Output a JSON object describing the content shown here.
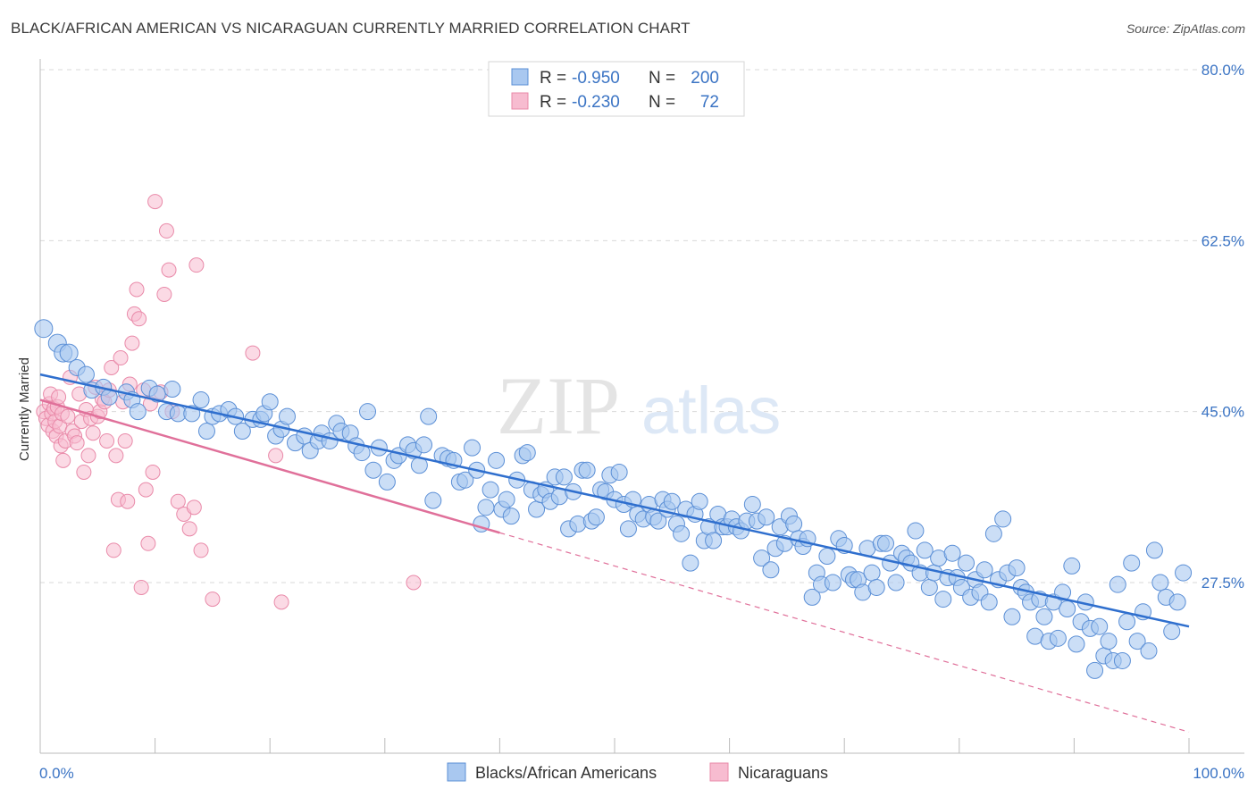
{
  "header": {
    "title": "BLACK/AFRICAN AMERICAN VS NICARAGUAN CURRENTLY MARRIED CORRELATION CHART",
    "source": "Source: ZipAtlas.com"
  },
  "watermark": {
    "zip": "ZIP",
    "atlas": "atlas"
  },
  "colors": {
    "blue_fill": "#a9c8f0",
    "blue_stroke": "#5b8fd6",
    "blue_line": "#2f6fce",
    "pink_fill": "#f7bcd0",
    "pink_stroke": "#e98aa9",
    "pink_line": "#e0709a",
    "tick_label": "#3b74c4",
    "grid": "#d9d9d9"
  },
  "legend": {
    "rows": [
      {
        "r_label": "R =",
        "r_value": "-0.950",
        "n_label": "N =",
        "n_value": "200",
        "series": "blue"
      },
      {
        "r_label": "R =",
        "r_value": "-0.230",
        "n_label": "N =",
        "n_value": "72",
        "series": "pink"
      }
    ]
  },
  "chart_data": {
    "type": "scatter",
    "title": "BLACK/AFRICAN AMERICAN VS NICARAGUAN CURRENTLY MARRIED CORRELATION CHART",
    "xlabel": "",
    "ylabel": "Currently Married",
    "xlim": [
      0,
      100
    ],
    "ylim": [
      10,
      85
    ],
    "x_tick_labels": [
      {
        "value": 0,
        "label": "0.0%"
      },
      {
        "value": 100,
        "label": "100.0%"
      }
    ],
    "y_tick_labels": [
      {
        "value": 27.5,
        "label": "27.5%"
      },
      {
        "value": 45.0,
        "label": "45.0%"
      },
      {
        "value": 62.5,
        "label": "62.5%"
      },
      {
        "value": 80.0,
        "label": "80.0%"
      }
    ],
    "grid": true,
    "legend_position": "top-center",
    "series": [
      {
        "name": "Blacks/African Americans",
        "color": "#a9c8f0",
        "r": -0.95,
        "n": 200,
        "trend": {
          "x": [
            0,
            100
          ],
          "y": [
            48.8,
            23.0
          ],
          "dashed_after_x": null
        },
        "points": [
          [
            0.3,
            53.5
          ],
          [
            1.5,
            52.0
          ],
          [
            2.0,
            51.0
          ],
          [
            2.5,
            51.0
          ],
          [
            3.2,
            49.5
          ],
          [
            4.0,
            48.8
          ],
          [
            4.5,
            47.2
          ],
          [
            5.5,
            47.5
          ],
          [
            6.0,
            46.5
          ],
          [
            7.5,
            47.0
          ],
          [
            8.0,
            46.2
          ],
          [
            8.5,
            45.0
          ],
          [
            9.5,
            47.4
          ],
          [
            10.2,
            46.8
          ],
          [
            11.0,
            45.0
          ],
          [
            11.5,
            47.3
          ],
          [
            12.0,
            44.8
          ],
          [
            13.2,
            44.8
          ],
          [
            14.0,
            46.2
          ],
          [
            14.5,
            43.0
          ],
          [
            15.0,
            44.5
          ],
          [
            15.6,
            44.8
          ],
          [
            16.4,
            45.2
          ],
          [
            17.0,
            44.5
          ],
          [
            17.6,
            43.0
          ],
          [
            18.5,
            44.2
          ],
          [
            19.2,
            44.2
          ],
          [
            19.5,
            44.8
          ],
          [
            20.0,
            46.0
          ],
          [
            20.5,
            42.5
          ],
          [
            21.0,
            43.2
          ],
          [
            21.5,
            44.5
          ],
          [
            22.2,
            41.8
          ],
          [
            23.0,
            42.5
          ],
          [
            23.5,
            41.0
          ],
          [
            24.2,
            42.0
          ],
          [
            24.5,
            42.8
          ],
          [
            25.2,
            42.0
          ],
          [
            25.8,
            43.8
          ],
          [
            26.2,
            43.0
          ],
          [
            27.0,
            42.8
          ],
          [
            27.5,
            41.5
          ],
          [
            28.0,
            40.8
          ],
          [
            28.5,
            45.0
          ],
          [
            29.0,
            39.0
          ],
          [
            29.5,
            41.3
          ],
          [
            30.2,
            37.8
          ],
          [
            30.8,
            40.0
          ],
          [
            31.2,
            40.5
          ],
          [
            32.0,
            41.6
          ],
          [
            32.5,
            41.0
          ],
          [
            33.0,
            39.5
          ],
          [
            33.4,
            41.6
          ],
          [
            33.8,
            44.5
          ],
          [
            34.2,
            35.9
          ],
          [
            35.0,
            40.5
          ],
          [
            35.5,
            40.2
          ],
          [
            36.0,
            40.0
          ],
          [
            36.5,
            37.8
          ],
          [
            37.0,
            38.0
          ],
          [
            37.6,
            41.3
          ],
          [
            38.0,
            39.0
          ],
          [
            38.4,
            33.5
          ],
          [
            38.8,
            35.2
          ],
          [
            39.2,
            37.0
          ],
          [
            39.7,
            40.0
          ],
          [
            40.2,
            35.0
          ],
          [
            40.6,
            36.0
          ],
          [
            41.0,
            34.3
          ],
          [
            41.5,
            38.0
          ],
          [
            42.0,
            40.5
          ],
          [
            42.4,
            40.8
          ],
          [
            42.8,
            37.0
          ],
          [
            43.2,
            35.0
          ],
          [
            43.6,
            36.5
          ],
          [
            44.0,
            37.0
          ],
          [
            44.4,
            35.8
          ],
          [
            44.8,
            38.3
          ],
          [
            45.2,
            36.3
          ],
          [
            45.6,
            38.3
          ],
          [
            46.0,
            33.0
          ],
          [
            46.4,
            36.8
          ],
          [
            46.8,
            33.5
          ],
          [
            47.2,
            39.0
          ],
          [
            47.6,
            39.0
          ],
          [
            48.0,
            33.8
          ],
          [
            48.4,
            34.2
          ],
          [
            48.8,
            37.0
          ],
          [
            49.2,
            36.8
          ],
          [
            49.6,
            38.5
          ],
          [
            50.0,
            36.0
          ],
          [
            50.4,
            38.8
          ],
          [
            50.8,
            35.5
          ],
          [
            51.2,
            33.0
          ],
          [
            51.6,
            36.0
          ],
          [
            52.0,
            34.5
          ],
          [
            52.5,
            34.0
          ],
          [
            53.0,
            35.5
          ],
          [
            53.4,
            34.2
          ],
          [
            53.8,
            33.8
          ],
          [
            54.2,
            36.0
          ],
          [
            54.6,
            35.0
          ],
          [
            55.0,
            35.8
          ],
          [
            55.4,
            33.5
          ],
          [
            55.8,
            32.5
          ],
          [
            56.2,
            35.0
          ],
          [
            56.6,
            29.5
          ],
          [
            57.0,
            34.5
          ],
          [
            57.4,
            35.8
          ],
          [
            57.8,
            31.8
          ],
          [
            58.2,
            33.2
          ],
          [
            58.6,
            31.8
          ],
          [
            59.0,
            34.5
          ],
          [
            59.4,
            33.2
          ],
          [
            59.8,
            33.2
          ],
          [
            60.2,
            34.0
          ],
          [
            60.6,
            33.2
          ],
          [
            61.0,
            32.8
          ],
          [
            61.5,
            33.8
          ],
          [
            62.0,
            35.5
          ],
          [
            62.4,
            33.8
          ],
          [
            62.8,
            30.0
          ],
          [
            63.2,
            34.2
          ],
          [
            63.6,
            28.8
          ],
          [
            64.0,
            31.0
          ],
          [
            64.4,
            33.2
          ],
          [
            64.8,
            31.5
          ],
          [
            65.2,
            34.3
          ],
          [
            65.6,
            33.5
          ],
          [
            66.0,
            32.0
          ],
          [
            66.4,
            31.2
          ],
          [
            66.8,
            32.0
          ],
          [
            67.2,
            26.0
          ],
          [
            67.6,
            28.5
          ],
          [
            68.0,
            27.3
          ],
          [
            68.5,
            30.2
          ],
          [
            69.0,
            27.5
          ],
          [
            69.5,
            32.0
          ],
          [
            70.0,
            31.3
          ],
          [
            70.4,
            28.3
          ],
          [
            70.8,
            27.8
          ],
          [
            71.2,
            27.8
          ],
          [
            71.6,
            26.5
          ],
          [
            72.0,
            31.0
          ],
          [
            72.4,
            28.5
          ],
          [
            72.8,
            27.0
          ],
          [
            73.2,
            31.5
          ],
          [
            73.6,
            31.5
          ],
          [
            74.0,
            29.5
          ],
          [
            74.5,
            27.5
          ],
          [
            75.0,
            30.5
          ],
          [
            75.4,
            30.0
          ],
          [
            75.8,
            29.5
          ],
          [
            76.2,
            32.8
          ],
          [
            76.6,
            28.5
          ],
          [
            77.0,
            30.8
          ],
          [
            77.4,
            27.0
          ],
          [
            77.8,
            28.5
          ],
          [
            78.2,
            30.0
          ],
          [
            78.6,
            25.8
          ],
          [
            79.0,
            28.0
          ],
          [
            79.4,
            30.5
          ],
          [
            79.8,
            28.0
          ],
          [
            80.2,
            27.0
          ],
          [
            80.6,
            29.5
          ],
          [
            81.0,
            26.0
          ],
          [
            81.4,
            27.8
          ],
          [
            81.8,
            26.5
          ],
          [
            82.2,
            28.8
          ],
          [
            82.6,
            25.5
          ],
          [
            83.0,
            32.5
          ],
          [
            83.4,
            27.8
          ],
          [
            83.8,
            34.0
          ],
          [
            84.2,
            28.5
          ],
          [
            84.6,
            24.0
          ],
          [
            85.0,
            29.0
          ],
          [
            85.4,
            27.0
          ],
          [
            85.8,
            26.5
          ],
          [
            86.2,
            25.5
          ],
          [
            86.6,
            22.0
          ],
          [
            87.0,
            25.8
          ],
          [
            87.4,
            24.0
          ],
          [
            87.8,
            21.5
          ],
          [
            88.2,
            25.5
          ],
          [
            88.6,
            21.8
          ],
          [
            89.0,
            26.5
          ],
          [
            89.4,
            24.8
          ],
          [
            89.8,
            29.2
          ],
          [
            90.2,
            21.2
          ],
          [
            90.6,
            23.5
          ],
          [
            91.0,
            25.5
          ],
          [
            91.4,
            22.8
          ],
          [
            91.8,
            18.5
          ],
          [
            92.2,
            23.0
          ],
          [
            92.6,
            20.0
          ],
          [
            93.0,
            21.5
          ],
          [
            93.4,
            19.5
          ],
          [
            93.8,
            27.3
          ],
          [
            94.2,
            19.5
          ],
          [
            94.6,
            23.5
          ],
          [
            95.0,
            29.5
          ],
          [
            95.5,
            21.5
          ],
          [
            96.0,
            24.5
          ],
          [
            96.5,
            20.5
          ],
          [
            97.0,
            30.8
          ],
          [
            97.5,
            27.5
          ],
          [
            98.0,
            26.0
          ],
          [
            98.5,
            22.5
          ],
          [
            99.0,
            25.5
          ],
          [
            99.5,
            28.5
          ]
        ]
      },
      {
        "name": "Nicaraguans",
        "color": "#f7bcd0",
        "r": -0.23,
        "n": 72,
        "trend": {
          "x": [
            0,
            100
          ],
          "y": [
            46.2,
            12.2
          ],
          "solid_until_x": 40
        },
        "points": [
          [
            0.3,
            45.0
          ],
          [
            0.5,
            44.3
          ],
          [
            0.7,
            43.6
          ],
          [
            0.8,
            45.8
          ],
          [
            0.9,
            46.8
          ],
          [
            1.0,
            44.8
          ],
          [
            1.1,
            43.0
          ],
          [
            1.2,
            45.3
          ],
          [
            1.3,
            44.0
          ],
          [
            1.4,
            42.5
          ],
          [
            1.5,
            45.5
          ],
          [
            1.6,
            46.5
          ],
          [
            1.7,
            43.5
          ],
          [
            1.8,
            41.5
          ],
          [
            1.9,
            44.8
          ],
          [
            2.0,
            40.0
          ],
          [
            2.2,
            42.0
          ],
          [
            2.4,
            44.5
          ],
          [
            2.6,
            48.5
          ],
          [
            2.8,
            43.0
          ],
          [
            3.0,
            42.5
          ],
          [
            3.2,
            41.8
          ],
          [
            3.4,
            46.8
          ],
          [
            3.6,
            44.0
          ],
          [
            3.8,
            38.8
          ],
          [
            4.0,
            45.2
          ],
          [
            4.2,
            40.5
          ],
          [
            4.4,
            44.3
          ],
          [
            4.6,
            42.8
          ],
          [
            4.8,
            47.5
          ],
          [
            5.0,
            44.5
          ],
          [
            5.2,
            45.0
          ],
          [
            5.4,
            46.3
          ],
          [
            5.6,
            46.0
          ],
          [
            5.8,
            42.0
          ],
          [
            6.0,
            47.2
          ],
          [
            6.2,
            49.5
          ],
          [
            6.4,
            30.8
          ],
          [
            6.6,
            40.5
          ],
          [
            6.8,
            36.0
          ],
          [
            7.0,
            50.5
          ],
          [
            7.2,
            46.0
          ],
          [
            7.4,
            42.0
          ],
          [
            7.6,
            35.8
          ],
          [
            7.8,
            47.8
          ],
          [
            8.0,
            52.0
          ],
          [
            8.2,
            55.0
          ],
          [
            8.4,
            57.5
          ],
          [
            8.6,
            54.5
          ],
          [
            8.8,
            27.0
          ],
          [
            9.0,
            47.2
          ],
          [
            9.2,
            37.0
          ],
          [
            9.4,
            31.5
          ],
          [
            9.6,
            45.8
          ],
          [
            9.8,
            38.8
          ],
          [
            10.0,
            66.5
          ],
          [
            10.5,
            47.0
          ],
          [
            10.8,
            57.0
          ],
          [
            11.0,
            63.5
          ],
          [
            11.2,
            59.5
          ],
          [
            11.5,
            45.0
          ],
          [
            12.0,
            35.8
          ],
          [
            12.5,
            34.5
          ],
          [
            13.0,
            33.0
          ],
          [
            13.4,
            35.2
          ],
          [
            13.6,
            60.0
          ],
          [
            14.0,
            30.8
          ],
          [
            15.0,
            25.8
          ],
          [
            18.5,
            51.0
          ],
          [
            20.5,
            40.5
          ],
          [
            21.0,
            25.5
          ],
          [
            32.5,
            27.5
          ]
        ]
      }
    ]
  },
  "bottom_legend": [
    {
      "label": "Blacks/African Americans",
      "series": "blue"
    },
    {
      "label": "Nicaraguans",
      "series": "pink"
    }
  ]
}
